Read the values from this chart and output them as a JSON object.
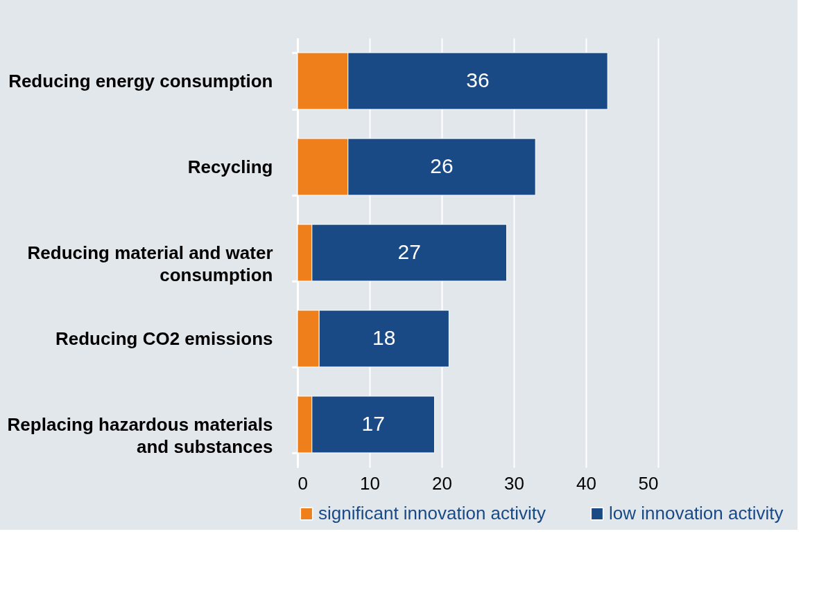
{
  "chart_data": {
    "type": "bar",
    "orientation": "horizontal",
    "stacked": true,
    "categories": [
      "Reducing energy consumption",
      "Recycling",
      "Reducing material and water consumption",
      "Reducing CO2 emissions",
      "Replacing hazardous materials and substances"
    ],
    "series": [
      {
        "name": "significant innovation activity",
        "color": "#ee7f1a",
        "values": [
          7,
          7,
          2,
          3,
          2
        ]
      },
      {
        "name": "low innovation activity",
        "color": "#1a4a86",
        "values": [
          36,
          26,
          27,
          18,
          17
        ],
        "value_labels": [
          "36",
          "26",
          "27",
          "18",
          "17"
        ]
      }
    ],
    "xlim": [
      0,
      50
    ],
    "xticks": [
      0,
      10,
      20,
      30,
      40,
      50
    ],
    "grid": "x",
    "legend": "bottom"
  }
}
